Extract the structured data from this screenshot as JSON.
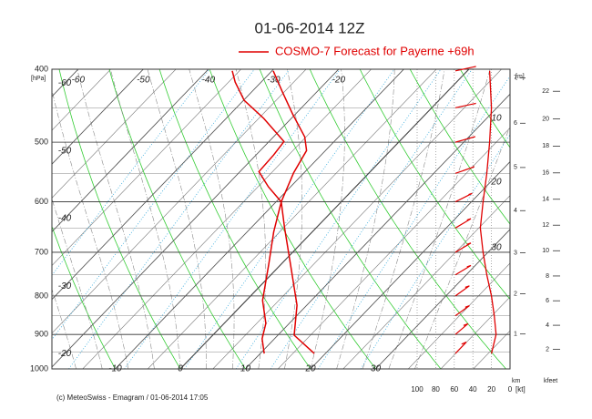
{
  "chart_data": {
    "type": "emagram",
    "title": "01-06-2014  12Z",
    "legend": "COSMO-7 Forecast for Payerne   +69h",
    "color": "#e00000",
    "log_y": true,
    "grid": true,
    "ylim": [
      1000,
      400
    ],
    "yticks": [
      400,
      500,
      600,
      700,
      800,
      900,
      1000
    ],
    "y_unit": "[hPa]",
    "isotherm_ticks_bottom": [
      -10,
      0,
      10,
      20,
      30
    ],
    "isotherm_ticks_top": [
      -60,
      -50,
      -40,
      -30,
      -20
    ],
    "isotherm_ticks_left": [
      -60,
      -50,
      -40,
      -30,
      -20
    ],
    "profiles": [
      {
        "pressure": [
          954,
          902,
          823,
          736,
          649,
          600,
          549,
          513,
          492,
          459,
          428,
          402
        ],
        "values": [
          18.3,
          12.5,
          8.5,
          2.2,
          -4.9,
          -9.2,
          -11.6,
          -12.9,
          -15.2,
          -20.4,
          -25.4,
          -29.8
        ]
      },
      {
        "pressure": [
          954,
          912,
          870,
          811,
          726,
          658,
          600,
          573,
          547,
          520,
          499,
          465,
          440,
          416,
          402
        ],
        "values": [
          10.6,
          8.1,
          6.4,
          2.5,
          -1.9,
          -5.9,
          -9.2,
          -13.4,
          -17.1,
          -17.3,
          -17.7,
          -24.2,
          -29.9,
          -34,
          -36.1
        ]
      }
    ],
    "wind": {
      "pressure": [
        402,
        450,
        500,
        550,
        600,
        650,
        700,
        750,
        800,
        850,
        900,
        954
      ],
      "speed": [
        22,
        20,
        22,
        25,
        29,
        32,
        29,
        25,
        20,
        17,
        15,
        20
      ],
      "direction": [
        250,
        250,
        245,
        240,
        230,
        225,
        225,
        225,
        220,
        220,
        215,
        210
      ]
    },
    "wind_xlim": [
      100,
      0
    ],
    "wind_ticks": [
      100,
      80,
      60,
      40,
      20,
      0
    ],
    "wind_unit": "[kt]",
    "wind_annotations": [
      "10",
      "20",
      "30"
    ],
    "height_unit": "[m]",
    "height_km_ticks": [
      1,
      2,
      3,
      4,
      5,
      6,
      7
    ],
    "height_km_label": "km",
    "height_kfeet_ticks": [
      2,
      4,
      6,
      8,
      10,
      12,
      14,
      16,
      18,
      20,
      22
    ],
    "height_kfeet_label": "kfeet",
    "footer": "(c) MeteoSwiss - Emagram  /  01-06-2014 17:05"
  }
}
